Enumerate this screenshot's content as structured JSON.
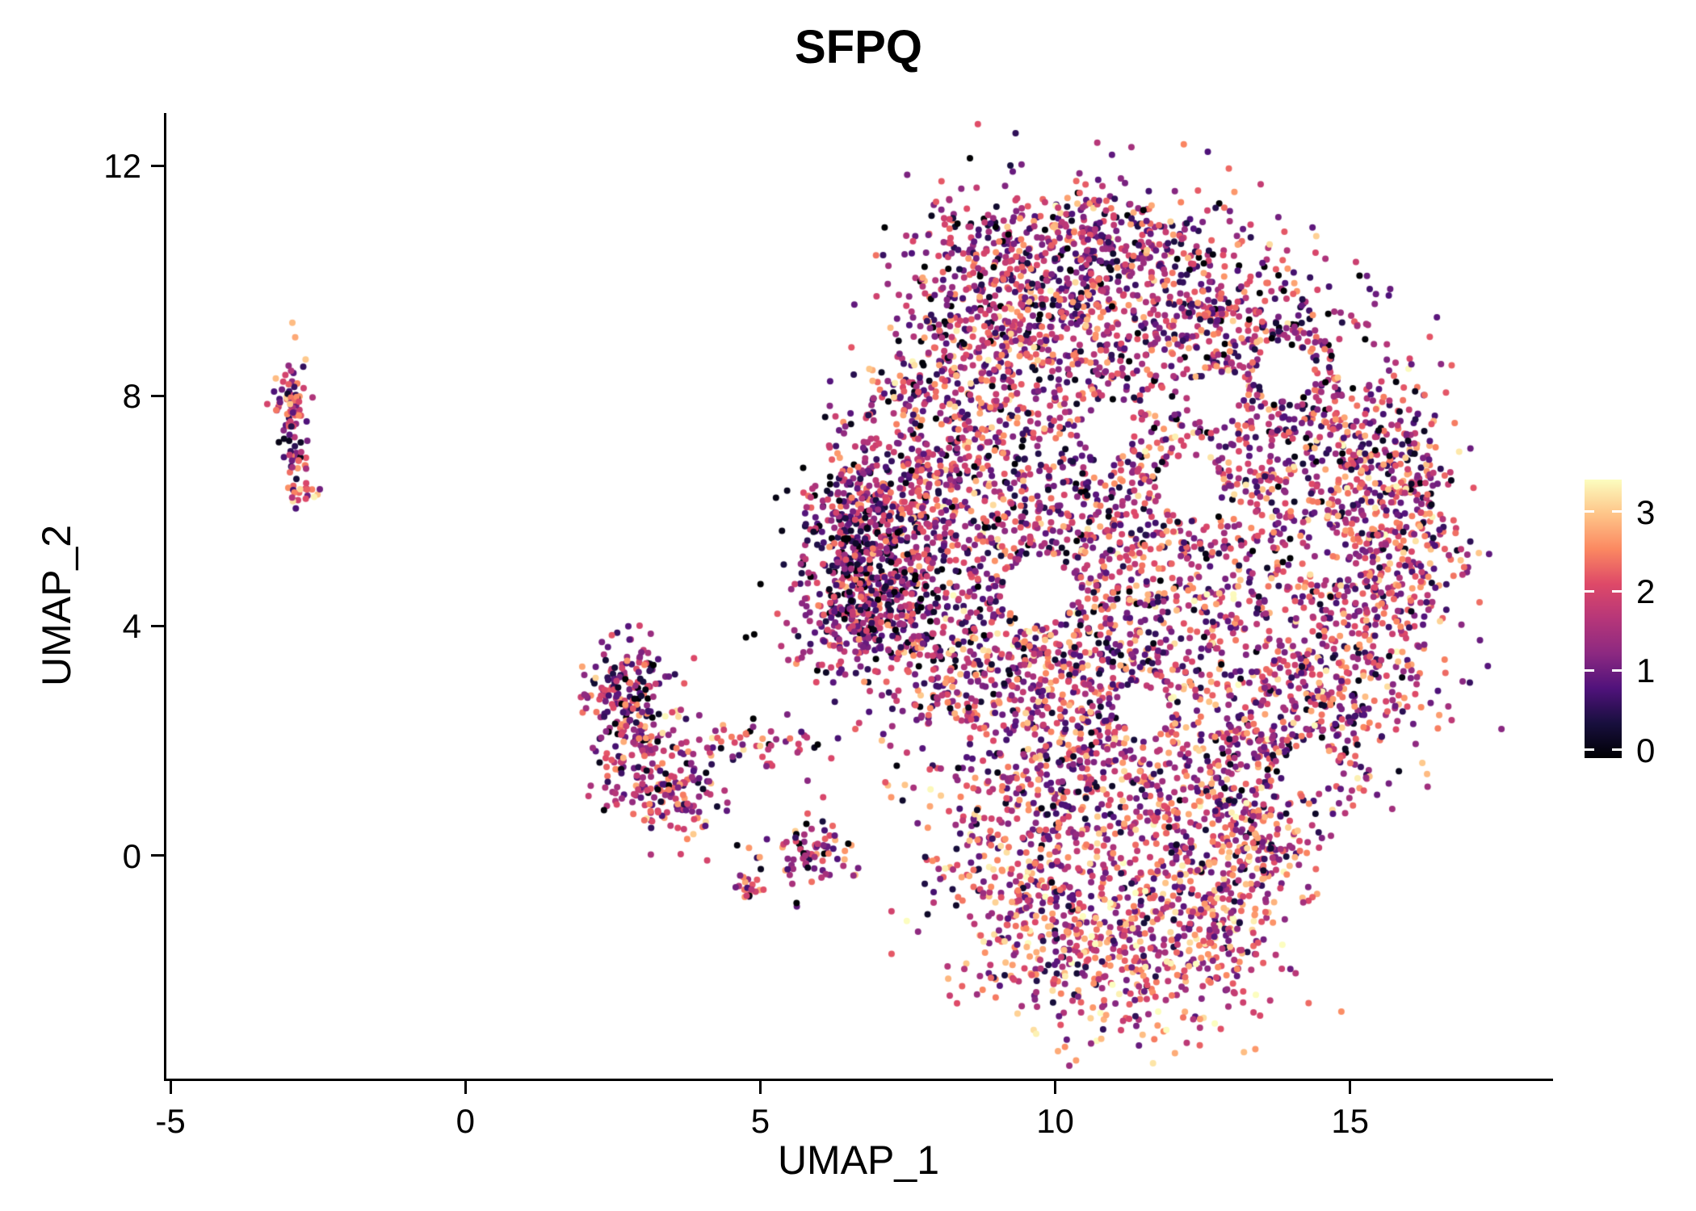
{
  "title": "SFPQ",
  "chart_data": {
    "type": "scatter",
    "title": "SFPQ",
    "xlabel": "UMAP_1",
    "ylabel": "UMAP_2",
    "xlim": [
      -5.07,
      18.4
    ],
    "ylim": [
      -3.88,
      12.92
    ],
    "xticks": [
      -5,
      0,
      5,
      10,
      15
    ],
    "yticks": [
      0,
      4,
      8,
      12
    ],
    "grid": false,
    "background": "#ffffff",
    "axis_color": "#000000",
    "text_color": "#000000",
    "point_radius": 4,
    "seed": 7,
    "legend_position": "right",
    "colorbar": {
      "ticks": [
        0,
        1,
        2,
        3
      ],
      "vmax": 3.3,
      "colormap": "magma",
      "stops": [
        [
          0,
          "#000004"
        ],
        [
          0.125,
          "#180f3e"
        ],
        [
          0.25,
          "#50127b"
        ],
        [
          0.375,
          "#8c2981"
        ],
        [
          0.5,
          "#b63679"
        ],
        [
          0.625,
          "#de4968"
        ],
        [
          0.75,
          "#fb8861"
        ],
        [
          0.875,
          "#fec488"
        ],
        [
          1,
          "#fcfdbf"
        ]
      ]
    },
    "value_mixture": [
      {
        "w": 0.08,
        "lo": 0.0,
        "hi": 0.3
      },
      {
        "w": 0.3,
        "lo": 0.5,
        "hi": 1.3
      },
      {
        "w": 0.27,
        "lo": 1.3,
        "hi": 2.0
      },
      {
        "w": 0.22,
        "lo": 2.0,
        "hi": 2.5
      },
      {
        "w": 0.1,
        "lo": 2.5,
        "hi": 2.9
      },
      {
        "w": 0.03,
        "lo": 2.9,
        "hi": 3.3
      }
    ],
    "holes": [
      [
        9.7,
        4.6,
        0.6
      ],
      [
        12.3,
        6.4,
        0.55
      ],
      [
        13.9,
        8.4,
        0.5
      ],
      [
        14.3,
        1.5,
        0.45
      ],
      [
        11.5,
        2.5,
        0.4
      ],
      [
        8.15,
        1.95,
        0.4
      ],
      [
        15.1,
        8.6,
        0.4
      ],
      [
        10.9,
        7.4,
        0.45
      ],
      [
        12.7,
        7.9,
        0.4
      ]
    ],
    "clusters": [
      {
        "name": "left-small-cluster",
        "blobs": [
          {
            "cx": -2.95,
            "cy": 8.0,
            "sx": 0.13,
            "sy": 0.42,
            "n": 70,
            "vshift": 0
          },
          {
            "cx": -2.85,
            "cy": 6.9,
            "sx": 0.12,
            "sy": 0.25,
            "n": 25,
            "vshift": 0
          },
          {
            "cx": -2.75,
            "cy": 6.3,
            "sx": 0.12,
            "sy": 0.12,
            "n": 20,
            "vshift": 0.2
          }
        ]
      },
      {
        "name": "lower-left-cluster",
        "blobs": [
          {
            "cx": 2.75,
            "cy": 2.9,
            "sx": 0.35,
            "sy": 0.45,
            "n": 160,
            "vshift": -0.2
          },
          {
            "cx": 3.1,
            "cy": 1.6,
            "sx": 0.45,
            "sy": 0.5,
            "n": 160,
            "vshift": 0
          },
          {
            "cx": 3.6,
            "cy": 0.9,
            "sx": 0.5,
            "sy": 0.3,
            "n": 60,
            "vshift": 0.1
          },
          {
            "cx": 4.8,
            "cy": 2.0,
            "sx": 0.7,
            "sy": 0.22,
            "n": 60,
            "vshift": -0.1
          },
          {
            "cx": 5.9,
            "cy": 0.05,
            "sx": 0.42,
            "sy": 0.3,
            "n": 80,
            "vshift": -0.1
          },
          {
            "cx": 4.85,
            "cy": -0.55,
            "sx": 0.15,
            "sy": 0.15,
            "n": 18,
            "vshift": 0
          },
          {
            "cx": 6.0,
            "cy": 3.6,
            "sx": 0.5,
            "sy": 0.3,
            "n": 22,
            "vshift": -0.2
          }
        ]
      },
      {
        "name": "main-cluster",
        "blobs": [
          {
            "cx": 7.1,
            "cy": 4.9,
            "sx": 0.75,
            "sy": 0.75,
            "n": 450,
            "vshift": -0.45
          },
          {
            "cx": 6.7,
            "cy": 5.9,
            "sx": 0.5,
            "sy": 0.6,
            "n": 170,
            "vshift": -0.4
          },
          {
            "cx": 6.6,
            "cy": 4.2,
            "sx": 0.4,
            "sy": 0.5,
            "n": 130,
            "vshift": -0.3
          },
          {
            "cx": 7.6,
            "cy": 6.8,
            "sx": 0.7,
            "sy": 0.8,
            "n": 250,
            "vshift": -0.1
          },
          {
            "cx": 8.6,
            "cy": 8.3,
            "sx": 0.9,
            "sy": 0.9,
            "n": 300,
            "vshift": 0
          },
          {
            "cx": 8.9,
            "cy": 10.3,
            "sx": 0.8,
            "sy": 0.7,
            "n": 210,
            "vshift": -0.3
          },
          {
            "cx": 10.8,
            "cy": 10.8,
            "sx": 0.7,
            "sy": 0.5,
            "n": 170,
            "vshift": -0.2
          },
          {
            "cx": 10.2,
            "cy": 9.3,
            "sx": 1.0,
            "sy": 1.0,
            "n": 380,
            "vshift": 0.15
          },
          {
            "cx": 12.0,
            "cy": 9.9,
            "sx": 1.0,
            "sy": 0.8,
            "n": 300,
            "vshift": -0.15
          },
          {
            "cx": 13.6,
            "cy": 8.8,
            "sx": 0.9,
            "sy": 0.8,
            "n": 250,
            "vshift": -0.2
          },
          {
            "cx": 15.0,
            "cy": 7.0,
            "sx": 0.8,
            "sy": 1.0,
            "n": 300,
            "vshift": 0
          },
          {
            "cx": 16.0,
            "cy": 6.2,
            "sx": 0.4,
            "sy": 0.8,
            "n": 130,
            "vshift": 0
          },
          {
            "cx": 15.6,
            "cy": 5.0,
            "sx": 0.7,
            "sy": 1.0,
            "n": 250,
            "vshift": 0.1
          },
          {
            "cx": 14.8,
            "cy": 3.2,
            "sx": 0.9,
            "sy": 0.9,
            "n": 300,
            "vshift": 0
          },
          {
            "cx": 13.0,
            "cy": 6.5,
            "sx": 1.2,
            "sy": 1.2,
            "n": 300,
            "vshift": -0.1
          },
          {
            "cx": 11.0,
            "cy": 6.0,
            "sx": 1.1,
            "sy": 1.2,
            "n": 340,
            "vshift": 0
          },
          {
            "cx": 9.3,
            "cy": 5.9,
            "sx": 0.8,
            "sy": 1.0,
            "n": 250,
            "vshift": -0.2
          },
          {
            "cx": 8.3,
            "cy": 3.2,
            "sx": 0.9,
            "sy": 1.1,
            "n": 340,
            "vshift": 0
          },
          {
            "cx": 10.0,
            "cy": 3.3,
            "sx": 1.0,
            "sy": 1.0,
            "n": 300,
            "vshift": 0.1
          },
          {
            "cx": 12.0,
            "cy": 3.5,
            "sx": 1.1,
            "sy": 1.0,
            "n": 300,
            "vshift": 0
          },
          {
            "cx": 13.8,
            "cy": 1.8,
            "sx": 0.8,
            "sy": 0.8,
            "n": 210,
            "vshift": 0
          },
          {
            "cx": 12.2,
            "cy": 1.0,
            "sx": 0.9,
            "sy": 0.8,
            "n": 250,
            "vshift": 0.2
          },
          {
            "cx": 10.3,
            "cy": 1.2,
            "sx": 0.9,
            "sy": 0.9,
            "n": 300,
            "vshift": 0.1
          },
          {
            "cx": 9.4,
            "cy": -0.3,
            "sx": 0.8,
            "sy": 0.7,
            "n": 210,
            "vshift": 0.2
          },
          {
            "cx": 10.6,
            "cy": -1.7,
            "sx": 1.1,
            "sy": 0.7,
            "n": 380,
            "vshift": 0.35
          },
          {
            "cx": 12.5,
            "cy": -1.3,
            "sx": 0.8,
            "sy": 0.7,
            "n": 250,
            "vshift": 0.3
          },
          {
            "cx": 13.3,
            "cy": 0.2,
            "sx": 0.5,
            "sy": 0.6,
            "n": 130,
            "vshift": 0.1
          }
        ]
      }
    ]
  }
}
